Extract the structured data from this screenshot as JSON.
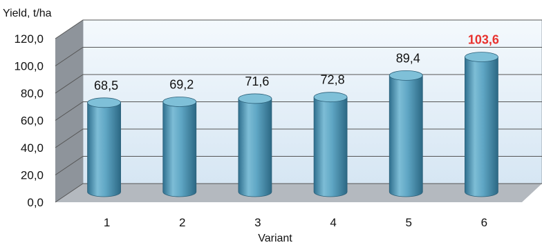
{
  "chart_data": {
    "type": "bar",
    "style": "3d-cylinder",
    "ylabel": "Yield, t/ha",
    "xlabel": "Variant",
    "categories": [
      "1",
      "2",
      "3",
      "4",
      "5",
      "6"
    ],
    "values": [
      68.5,
      69.2,
      71.6,
      72.8,
      89.4,
      103.6
    ],
    "data_labels": [
      "68,5",
      "69,2",
      "71,6",
      "72,8",
      "89,4",
      "103,6"
    ],
    "y_ticks": [
      "0,0",
      "20,0",
      "40,0",
      "60,0",
      "80,0",
      "100,0",
      "120,0"
    ],
    "ylim": [
      0,
      120
    ],
    "grid": true,
    "legend": "none",
    "highlight": {
      "index": 5,
      "color": "#e8322e"
    },
    "colors": {
      "bar": "#5aa3c0",
      "back_wall": "#e3eff8",
      "floor": "#b4b9bf",
      "side_wall": "#8e949b",
      "grid": "#555555"
    }
  }
}
